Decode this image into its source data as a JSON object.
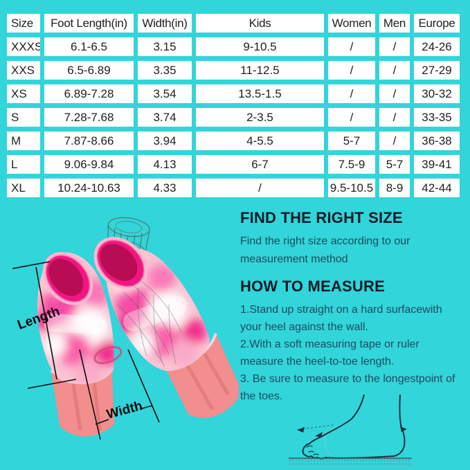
{
  "colors": {
    "background": "#31d5da",
    "table_cell_bg": "#ffffff",
    "table_text": "#202020",
    "heading_text": "#0e1c27",
    "body_text": "#1f4a5f",
    "dimension_line": "#0c0c0c",
    "fin_hot_pink": "#f2167f",
    "fin_blade_pink": "#f28e8d",
    "foot_outline": "#16323e"
  },
  "table": {
    "headers": [
      "Size",
      "Foot Length(in)",
      "Width(in)",
      "Kids",
      "Women",
      "Men",
      "Europe"
    ],
    "rows": [
      [
        "XXXS",
        "6.1-6.5",
        "3.15",
        "9-10.5",
        "/",
        "/",
        "24-26"
      ],
      [
        "XXS",
        "6.5-6.89",
        "3.35",
        "11-12.5",
        "/",
        "/",
        "27-29"
      ],
      [
        "XS",
        "6.89-7.28",
        "3.54",
        "13.5-1.5",
        "/",
        "/",
        "30-32"
      ],
      [
        "S",
        "7.28-7.68",
        "3.74",
        "2-3.5",
        "/",
        "/",
        "33-35"
      ],
      [
        "M",
        "7.87-8.66",
        "3.94",
        "4-5.5",
        "5-7",
        "/",
        "36-38"
      ],
      [
        "L",
        "9.06-9.84",
        "4.13",
        "6-7",
        "7.5-9",
        "5-7",
        "39-41"
      ],
      [
        "XL",
        "10.24-10.63",
        "4.33",
        "/",
        "9.5-10.5",
        "8-9",
        "42-44"
      ]
    ]
  },
  "illustration": {
    "length_label": "Length",
    "width_label": "Width"
  },
  "info": {
    "find_title": "FIND THE RIGHT SIZE",
    "find_lines": [
      "Find the right size according to our",
      "measurement method"
    ],
    "measure_title": "HOW TO MEASURE",
    "step_lines": [
      "1.Stand up straight on a hard surfacewith",
      "your heel against the wall.",
      "2.With a soft measuring tape or ruler",
      "measure the heel-to-toe length.",
      "3. Be sure to measure to the longestpoint of",
      "the toes."
    ]
  }
}
